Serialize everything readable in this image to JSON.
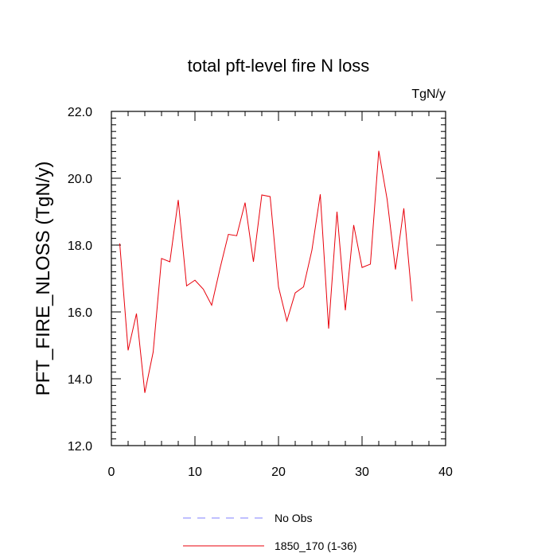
{
  "chart_data": {
    "type": "line",
    "title": "total pft-level fire N loss",
    "units": "TgN/y",
    "xlabel": "",
    "ylabel": "PFT_FIRE_NLOSS  (TgN/y)",
    "xlim": [
      0,
      40
    ],
    "ylim": [
      12.0,
      22.0
    ],
    "xticks": [
      0,
      10,
      20,
      30,
      40
    ],
    "xtick_labels": [
      "0",
      "10",
      "20",
      "30",
      "40"
    ],
    "yticks": [
      12.0,
      14.0,
      16.0,
      18.0,
      20.0,
      22.0
    ],
    "ytick_labels": [
      "12.0",
      "14.0",
      "16.0",
      "18.0",
      "20.0",
      "22.0"
    ],
    "legend_position": "bottom-center",
    "series": [
      {
        "name": "1850_170 (1-36)",
        "color": "#e8000b",
        "style": "solid",
        "x": [
          1,
          2,
          3,
          4,
          5,
          6,
          7,
          8,
          9,
          10,
          11,
          12,
          13,
          14,
          15,
          16,
          17,
          18,
          19,
          20,
          21,
          22,
          23,
          24,
          25,
          26,
          27,
          28,
          29,
          30,
          31,
          32,
          33,
          34,
          35,
          36
        ],
        "values": [
          18.05,
          14.85,
          15.95,
          13.58,
          14.8,
          17.6,
          17.5,
          19.35,
          16.78,
          16.95,
          16.68,
          16.2,
          17.3,
          18.32,
          18.28,
          19.27,
          17.5,
          19.5,
          19.45,
          16.75,
          15.73,
          16.57,
          16.75,
          17.85,
          19.52,
          15.5,
          19.0,
          16.05,
          18.6,
          17.33,
          17.43,
          20.82,
          19.37,
          17.27,
          19.1,
          16.32
        ]
      },
      {
        "name": "No Obs",
        "color": "#8080ff",
        "style": "dashed",
        "x": [],
        "values": []
      }
    ]
  }
}
